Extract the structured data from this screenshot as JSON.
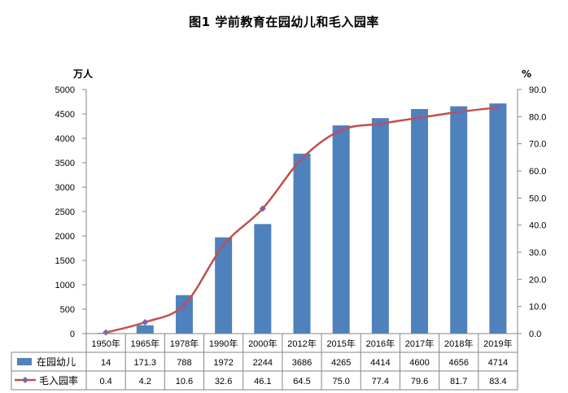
{
  "chart_data": {
    "type": "bar+line",
    "title": "图1  学前教育在园幼儿和毛入园率",
    "y_left_unit": "万人",
    "y_right_unit": "%",
    "y_left_ticks": [
      "0",
      "500",
      "1000",
      "1500",
      "2000",
      "2500",
      "3000",
      "3500",
      "4000",
      "4500",
      "5000"
    ],
    "y_right_ticks": [
      "0.0",
      "10.0",
      "20.0",
      "30.0",
      "40.0",
      "50.0",
      "60.0",
      "70.0",
      "80.0",
      "90.0"
    ],
    "y_left_lim": [
      0,
      5000
    ],
    "y_right_lim": [
      0,
      90
    ],
    "categories": [
      "1950年",
      "1965年",
      "1978年",
      "1990年",
      "2000年",
      "2012年",
      "2015年",
      "2016年",
      "2017年",
      "2018年",
      "2019年"
    ],
    "series": [
      {
        "name": "在园幼儿",
        "type": "bar",
        "axis": "left",
        "color": "#4F81BD",
        "values": [
          14,
          171.3,
          788,
          1972,
          2244,
          3686,
          4265,
          4414,
          4600,
          4656,
          4714
        ],
        "labels": [
          "14",
          "171.3",
          "788",
          "1972",
          "2244",
          "3686",
          "4265",
          "4414",
          "4600",
          "4656",
          "4714"
        ]
      },
      {
        "name": "毛入园率",
        "type": "line",
        "axis": "right",
        "color": "#C0504D",
        "marker_color": "#8064A2",
        "values": [
          0.4,
          4.2,
          10.6,
          32.6,
          46.1,
          64.5,
          75.0,
          77.4,
          79.6,
          81.7,
          83.4
        ],
        "labels": [
          "0.4",
          "4.2",
          "10.6",
          "32.6",
          "46.1",
          "64.5",
          "75.0",
          "77.4",
          "79.6",
          "81.7",
          "83.4"
        ]
      }
    ],
    "grid": false,
    "legend_placement": "data-table"
  }
}
